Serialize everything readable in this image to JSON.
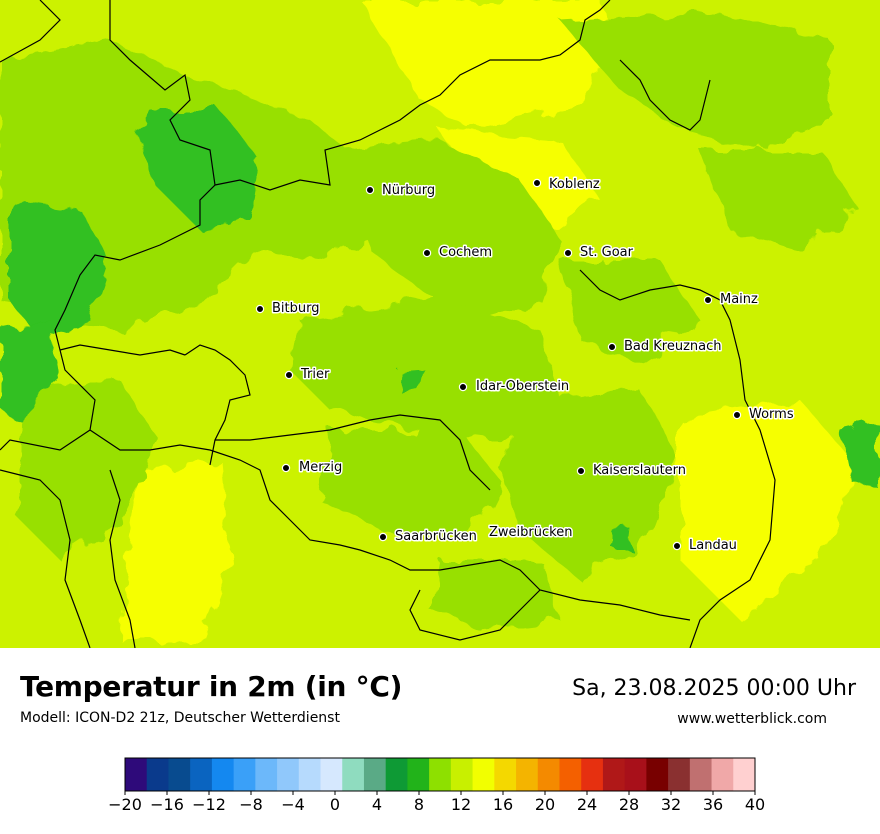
{
  "title": "Temperatur in 2m (in °C)",
  "model": "Modell: ICON-D2 21z, Deutscher Wetterdienst",
  "datetime": "Sa, 23.08.2025 00:00 Uhr",
  "website": "www.wetterblick.com",
  "cities": [
    {
      "name": "Nürburg",
      "icon": "city-dot-icon"
    },
    {
      "name": "Koblenz",
      "icon": "city-dot-icon"
    },
    {
      "name": "Cochem",
      "icon": "city-dot-icon"
    },
    {
      "name": "St. Goar",
      "icon": "city-dot-icon"
    },
    {
      "name": "Mainz",
      "icon": "city-dot-icon"
    },
    {
      "name": "Bitburg",
      "icon": "city-dot-icon"
    },
    {
      "name": "Bad Kreuznach",
      "icon": "city-dot-icon"
    },
    {
      "name": "Trier",
      "icon": "city-dot-icon"
    },
    {
      "name": "Idar-Oberstein",
      "icon": "city-dot-icon"
    },
    {
      "name": "Worms",
      "icon": "city-dot-icon"
    },
    {
      "name": "Merzig",
      "icon": "city-dot-icon"
    },
    {
      "name": "Kaiserslautern",
      "icon": "city-dot-icon"
    },
    {
      "name": "Saarbrücken",
      "icon": "city-dot-icon"
    },
    {
      "name": "Zweibrücken",
      "icon": "city-dot-icon"
    },
    {
      "name": "Landau",
      "icon": "city-dot-icon"
    }
  ],
  "legend": {
    "ticks": [
      "−20",
      "−16",
      "−12",
      "−8",
      "−4",
      "0",
      "4",
      "8",
      "12",
      "16",
      "20",
      "24",
      "28",
      "32",
      "36",
      "40"
    ],
    "colors": [
      "#2e0a7a",
      "#0a3a8c",
      "#084b8f",
      "#0a64c0",
      "#1488f0",
      "#3aa0f8",
      "#6cb8fa",
      "#90c8fb",
      "#b6dafd",
      "#d6e8fe",
      "#8fdcbf",
      "#5aaa86",
      "#0e9a35",
      "#22b31a",
      "#8ee000",
      "#c8f000",
      "#f2ff00",
      "#f4d800",
      "#f4b400",
      "#f48a00",
      "#f46000",
      "#e63010",
      "#b01818",
      "#a8101a",
      "#780000",
      "#8a3030",
      "#c07070",
      "#f0a8a8",
      "#ffd0d0"
    ]
  },
  "map_colors": {
    "dark_green": "#30c020",
    "green": "#98e000",
    "yellow_green": "#ccf200",
    "yellow": "#f6ff00",
    "border": "#000000"
  }
}
